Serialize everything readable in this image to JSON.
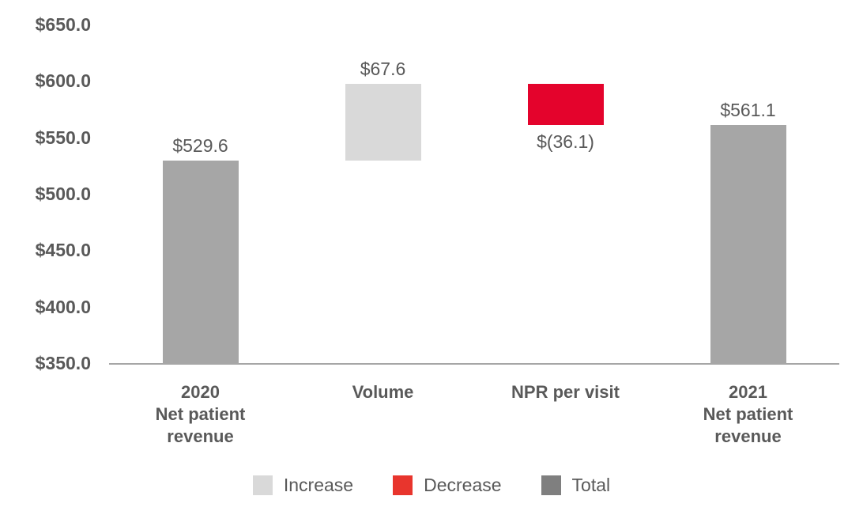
{
  "chart_data": {
    "type": "bar",
    "subtype": "waterfall",
    "title": "",
    "xlabel": "",
    "ylabel": "",
    "grid": false,
    "legend_position": "bottom",
    "text_color": "#595959",
    "axis_line_color": "#a6a6a6",
    "y_axis": {
      "min": 350,
      "max": 650,
      "step": 50,
      "tick_labels": [
        "$650.0",
        "$600.0",
        "$550.0",
        "$500.0",
        "$450.0",
        "$400.0",
        "$350.0"
      ],
      "tick_values": [
        650,
        600,
        550,
        500,
        450,
        400,
        350
      ]
    },
    "colors": {
      "total": "#a6a6a6",
      "increase": "#d9d9d9",
      "decrease": "#e4032c"
    },
    "bars": [
      {
        "name": "2020-net-patient-revenue",
        "category_lines": [
          "2020",
          "Net patient",
          "revenue"
        ],
        "kind": "total",
        "start": 350.0,
        "end": 529.6,
        "value": 529.6,
        "value_label": "$529.6",
        "label_position": "above"
      },
      {
        "name": "volume",
        "category_lines": [
          "Volume"
        ],
        "kind": "increase",
        "start": 529.6,
        "end": 597.2,
        "value": 67.6,
        "value_label": "$67.6",
        "label_position": "above"
      },
      {
        "name": "npr-per-visit",
        "category_lines": [
          "NPR per visit"
        ],
        "kind": "decrease",
        "start": 597.2,
        "end": 561.1,
        "value": -36.1,
        "value_label": "$(36.1)",
        "label_position": "below"
      },
      {
        "name": "2021-net-patient-revenue",
        "category_lines": [
          "2021",
          "Net patient",
          "revenue"
        ],
        "kind": "total",
        "start": 350.0,
        "end": 561.1,
        "value": 561.1,
        "value_label": "$561.1",
        "label_position": "above"
      }
    ],
    "legend": [
      {
        "label": "Increase",
        "color": "#d9d9d9"
      },
      {
        "label": "Decrease",
        "color": "#e8352d"
      },
      {
        "label": "Total",
        "color": "#7f7f7f"
      }
    ]
  }
}
